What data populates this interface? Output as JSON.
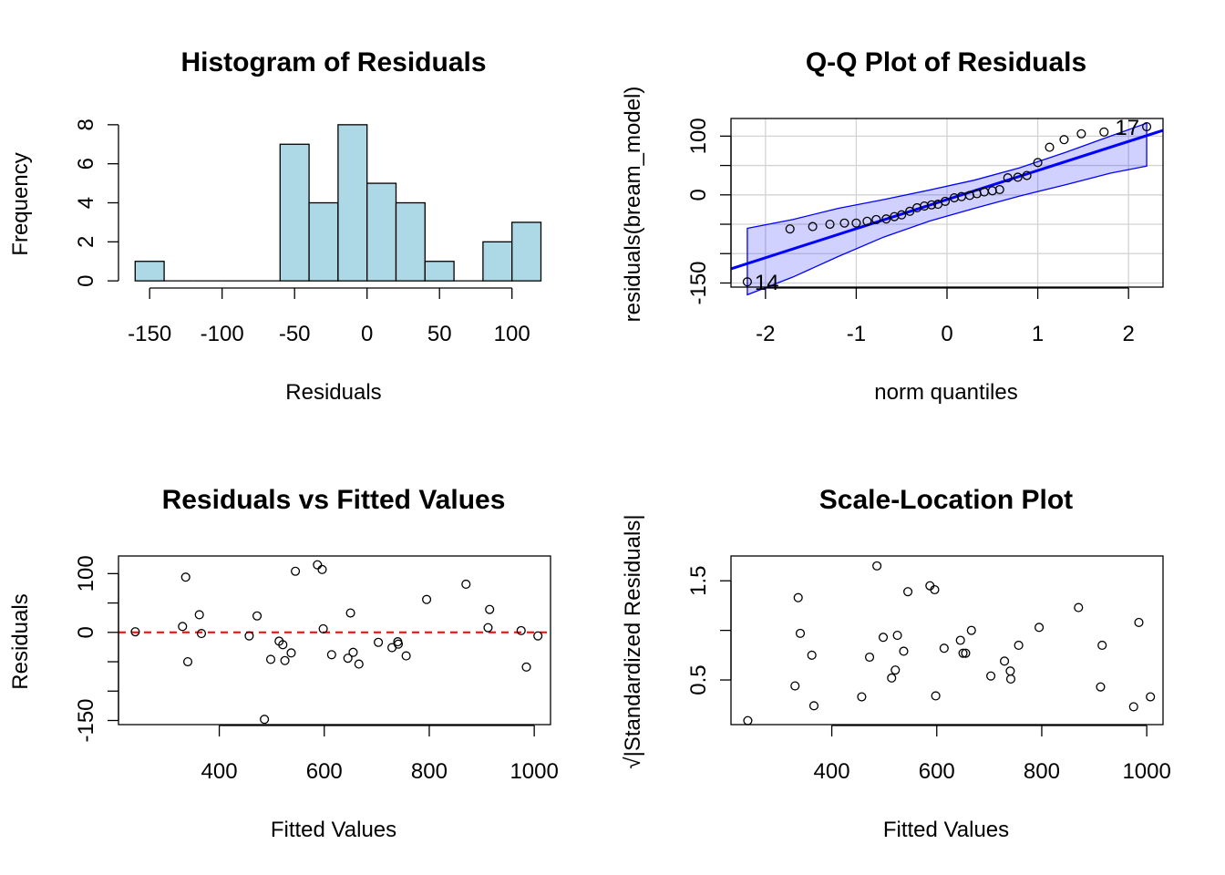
{
  "colors": {
    "hist_fill": "#add8e6",
    "qq_band": "#0000ff",
    "ref_line": "#ff0000",
    "grid": "#d3d3d3",
    "ink": "#000000"
  },
  "chart_data": [
    {
      "type": "histogram",
      "title": "Histogram of Residuals",
      "xlabel": "Residuals",
      "ylabel": "Frequency",
      "bins": [
        {
          "from": -160,
          "to": -140,
          "count": 1
        },
        {
          "from": -140,
          "to": -120,
          "count": 0
        },
        {
          "from": -120,
          "to": -100,
          "count": 0
        },
        {
          "from": -100,
          "to": -80,
          "count": 0
        },
        {
          "from": -80,
          "to": -60,
          "count": 0
        },
        {
          "from": -60,
          "to": -40,
          "count": 7
        },
        {
          "from": -40,
          "to": -20,
          "count": 4
        },
        {
          "from": -20,
          "to": 0,
          "count": 8
        },
        {
          "from": 0,
          "to": 20,
          "count": 5
        },
        {
          "from": 20,
          "to": 40,
          "count": 4
        },
        {
          "from": 40,
          "to": 60,
          "count": 1
        },
        {
          "from": 60,
          "to": 80,
          "count": 0
        },
        {
          "from": 80,
          "to": 100,
          "count": 2
        },
        {
          "from": 100,
          "to": 120,
          "count": 3
        }
      ],
      "xticks": [
        -150,
        -100,
        -50,
        0,
        50,
        100
      ],
      "xtick_labels": [
        "-150",
        "-100",
        "-50",
        "0",
        "50",
        "100"
      ],
      "yticks": [
        0,
        2,
        4,
        6,
        8
      ],
      "ytick_labels": [
        "0",
        "2",
        "4",
        "6",
        "8"
      ],
      "xlim": [
        -171.5,
        126.6
      ],
      "ylim": [
        -0.32,
        8.32
      ]
    },
    {
      "type": "scatter",
      "subtype": "qq",
      "title": "Q-Q Plot of Residuals",
      "xlabel": "norm quantiles",
      "ylabel": "residuals(bream_model)",
      "xlim": [
        -2.38,
        2.38
      ],
      "ylim": [
        -157,
        130
      ],
      "xticks": [
        -2,
        -1,
        0,
        1,
        2
      ],
      "xtick_labels": [
        "-2",
        "-1",
        "0",
        "1",
        "2"
      ],
      "yticks": [
        -150,
        -100,
        -50,
        0,
        50,
        100
      ],
      "ytick_labels": [
        "-150",
        "",
        "",
        "0",
        "",
        "100"
      ],
      "grid": true,
      "points": [
        {
          "x": -2.2,
          "y": -148
        },
        {
          "x": -1.73,
          "y": -58
        },
        {
          "x": -1.48,
          "y": -54
        },
        {
          "x": -1.29,
          "y": -50
        },
        {
          "x": -1.13,
          "y": -48
        },
        {
          "x": -1.0,
          "y": -48
        },
        {
          "x": -0.88,
          "y": -45
        },
        {
          "x": -0.78,
          "y": -42
        },
        {
          "x": -0.67,
          "y": -41
        },
        {
          "x": -0.58,
          "y": -37
        },
        {
          "x": -0.5,
          "y": -34
        },
        {
          "x": -0.41,
          "y": -28
        },
        {
          "x": -0.33,
          "y": -22
        },
        {
          "x": -0.25,
          "y": -19
        },
        {
          "x": -0.17,
          "y": -17
        },
        {
          "x": -0.1,
          "y": -16
        },
        {
          "x": -0.02,
          "y": -11
        },
        {
          "x": 0.08,
          "y": -5
        },
        {
          "x": 0.16,
          "y": -3
        },
        {
          "x": 0.25,
          "y": -1
        },
        {
          "x": 0.33,
          "y": 2
        },
        {
          "x": 0.41,
          "y": 5
        },
        {
          "x": 0.5,
          "y": 7
        },
        {
          "x": 0.58,
          "y": 9
        },
        {
          "x": 0.67,
          "y": 29
        },
        {
          "x": 0.78,
          "y": 30
        },
        {
          "x": 0.88,
          "y": 33
        },
        {
          "x": 1.0,
          "y": 55
        },
        {
          "x": 1.13,
          "y": 81
        },
        {
          "x": 1.29,
          "y": 94
        },
        {
          "x": 1.48,
          "y": 104
        },
        {
          "x": 1.73,
          "y": 107
        },
        {
          "x": 2.2,
          "y": 116
        }
      ],
      "reference_line": {
        "intercept": -8,
        "slope": 49.5
      },
      "confidence_band": {
        "x": [
          -2.2,
          -1.7,
          -1.2,
          -0.7,
          -0.2,
          0.3,
          0.8,
          1.3,
          1.8,
          2.2
        ],
        "lower": [
          -170,
          -140,
          -105,
          -72,
          -45,
          -23,
          -2,
          17,
          37,
          49
        ],
        "upper": [
          -57,
          -42,
          -23,
          -8,
          8,
          25,
          46,
          72,
          100,
          122
        ]
      },
      "annotations": [
        {
          "label": "14",
          "x": -2.2,
          "y": -148
        },
        {
          "label": "17",
          "x": 2.2,
          "y": 116
        }
      ]
    },
    {
      "type": "scatter",
      "title": "Residuals vs Fitted Values",
      "xlabel": "Fitted Values",
      "ylabel": "Residuals",
      "xlim": [
        208,
        1031
      ],
      "ylim": [
        -157,
        130
      ],
      "xticks": [
        400,
        600,
        800,
        1000
      ],
      "xtick_labels": [
        "400",
        "600",
        "800",
        "1000"
      ],
      "yticks": [
        -150,
        -100,
        -50,
        0,
        50,
        100
      ],
      "ytick_labels": [
        "-150",
        "",
        "",
        "0",
        "",
        "100"
      ],
      "reference_hline": 0,
      "points": [
        {
          "x": 240,
          "y": 1
        },
        {
          "x": 330,
          "y": 10
        },
        {
          "x": 336,
          "y": 94
        },
        {
          "x": 340,
          "y": -50
        },
        {
          "x": 362,
          "y": 30
        },
        {
          "x": 366,
          "y": -2
        },
        {
          "x": 457,
          "y": -6
        },
        {
          "x": 472,
          "y": 28
        },
        {
          "x": 486,
          "y": -148
        },
        {
          "x": 498,
          "y": -46
        },
        {
          "x": 514,
          "y": -15
        },
        {
          "x": 521,
          "y": -21
        },
        {
          "x": 525,
          "y": -48
        },
        {
          "x": 537,
          "y": -35
        },
        {
          "x": 545,
          "y": 104
        },
        {
          "x": 587,
          "y": 115
        },
        {
          "x": 596,
          "y": 107
        },
        {
          "x": 598,
          "y": 6
        },
        {
          "x": 614,
          "y": -38
        },
        {
          "x": 645,
          "y": -44
        },
        {
          "x": 650,
          "y": 33
        },
        {
          "x": 655,
          "y": -34
        },
        {
          "x": 666,
          "y": -54
        },
        {
          "x": 703,
          "y": -17
        },
        {
          "x": 729,
          "y": -26
        },
        {
          "x": 740,
          "y": -16
        },
        {
          "x": 741,
          "y": -20
        },
        {
          "x": 756,
          "y": -40
        },
        {
          "x": 795,
          "y": 56
        },
        {
          "x": 870,
          "y": 82
        },
        {
          "x": 912,
          "y": 8
        },
        {
          "x": 915,
          "y": 39
        },
        {
          "x": 975,
          "y": 3
        },
        {
          "x": 985,
          "y": -59
        },
        {
          "x": 1007,
          "y": -6
        }
      ]
    },
    {
      "type": "scatter",
      "title": "Scale-Location Plot",
      "xlabel": "Fitted Values",
      "ylabel": "√|Standardized Residuals|",
      "xlim": [
        208,
        1031
      ],
      "ylim": [
        0.05,
        1.75
      ],
      "xticks": [
        400,
        600,
        800,
        1000
      ],
      "xtick_labels": [
        "400",
        "600",
        "800",
        "1000"
      ],
      "yticks": [
        0.5,
        1.0,
        1.5
      ],
      "ytick_labels": [
        "0.5",
        "",
        "1.5"
      ],
      "points": [
        {
          "x": 240,
          "y": 0.09
        },
        {
          "x": 330,
          "y": 0.44
        },
        {
          "x": 336,
          "y": 1.33
        },
        {
          "x": 340,
          "y": 0.97
        },
        {
          "x": 362,
          "y": 0.75
        },
        {
          "x": 366,
          "y": 0.24
        },
        {
          "x": 457,
          "y": 0.33
        },
        {
          "x": 472,
          "y": 0.73
        },
        {
          "x": 486,
          "y": 1.65
        },
        {
          "x": 498,
          "y": 0.93
        },
        {
          "x": 514,
          "y": 0.52
        },
        {
          "x": 521,
          "y": 0.6
        },
        {
          "x": 525,
          "y": 0.95
        },
        {
          "x": 537,
          "y": 0.79
        },
        {
          "x": 545,
          "y": 1.39
        },
        {
          "x": 587,
          "y": 1.45
        },
        {
          "x": 596,
          "y": 1.41
        },
        {
          "x": 598,
          "y": 0.34
        },
        {
          "x": 614,
          "y": 0.82
        },
        {
          "x": 645,
          "y": 0.9
        },
        {
          "x": 650,
          "y": 0.77
        },
        {
          "x": 655,
          "y": 0.77
        },
        {
          "x": 666,
          "y": 1.0
        },
        {
          "x": 703,
          "y": 0.54
        },
        {
          "x": 729,
          "y": 0.69
        },
        {
          "x": 740,
          "y": 0.59
        },
        {
          "x": 741,
          "y": 0.51
        },
        {
          "x": 756,
          "y": 0.85
        },
        {
          "x": 795,
          "y": 1.03
        },
        {
          "x": 870,
          "y": 1.23
        },
        {
          "x": 912,
          "y": 0.43
        },
        {
          "x": 915,
          "y": 0.85
        },
        {
          "x": 975,
          "y": 0.23
        },
        {
          "x": 985,
          "y": 1.08
        },
        {
          "x": 1007,
          "y": 0.33
        }
      ]
    }
  ]
}
